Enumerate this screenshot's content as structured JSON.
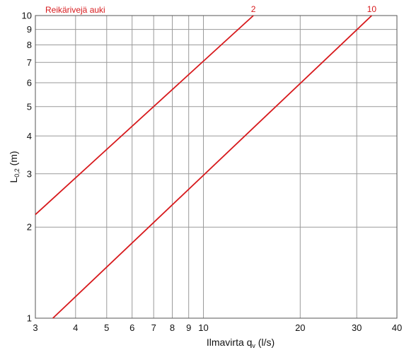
{
  "chart_data": {
    "type": "line",
    "title": "",
    "xlabel": "Ilmavirta q",
    "xlabel_sub": "v",
    "xlabel_unit": " (l/s)",
    "ylabel": "L",
    "ylabel_sub": "0,2",
    "ylabel_unit": " (m)",
    "xscale": "log",
    "yscale": "log",
    "xlim": [
      3,
      40
    ],
    "ylim": [
      1,
      10
    ],
    "grid": true,
    "x_ticks": [
      3,
      4,
      5,
      6,
      7,
      8,
      9,
      10,
      20,
      30,
      40
    ],
    "y_ticks": [
      1,
      2,
      3,
      4,
      5,
      6,
      7,
      8,
      9,
      10
    ],
    "color": "#d7191c",
    "annotation": "Reikärivejä auki",
    "series": [
      {
        "name": "2",
        "x": [
          3.0,
          14.3
        ],
        "y": [
          2.2,
          10.0
        ]
      },
      {
        "name": "10",
        "x": [
          3.4,
          33.4
        ],
        "y": [
          1.0,
          10.0
        ]
      }
    ]
  }
}
